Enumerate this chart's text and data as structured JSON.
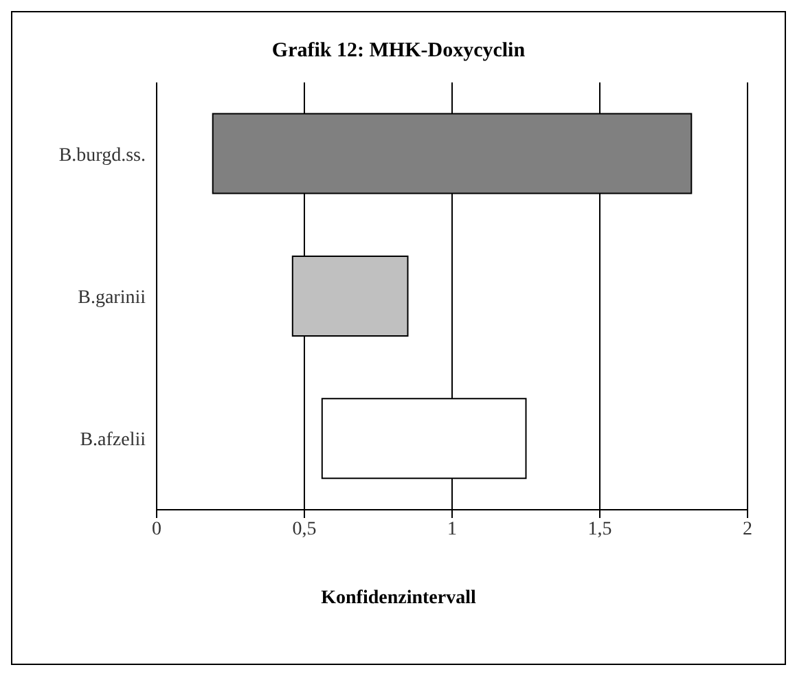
{
  "chart_data": {
    "type": "bar",
    "orientation": "horizontal",
    "title": "Grafik 12: MHK-Doxycyclin",
    "xlabel": "Konfidenzintervall",
    "categories": [
      "B.burgd.ss.",
      "B.garinii",
      "B.afzelii"
    ],
    "values": [
      1.62,
      0.39,
      0.69
    ],
    "base": [
      0.19,
      0.46,
      0.56
    ],
    "colors": [
      "#808080",
      "#c0c0c0",
      "#ffffff"
    ],
    "xlim": [
      0,
      2
    ],
    "xticks": [
      0,
      {
        "value": 0.5,
        "label": "0,5"
      },
      1,
      {
        "value": 1.5,
        "label": "1,5"
      },
      2
    ],
    "grid": "x"
  }
}
